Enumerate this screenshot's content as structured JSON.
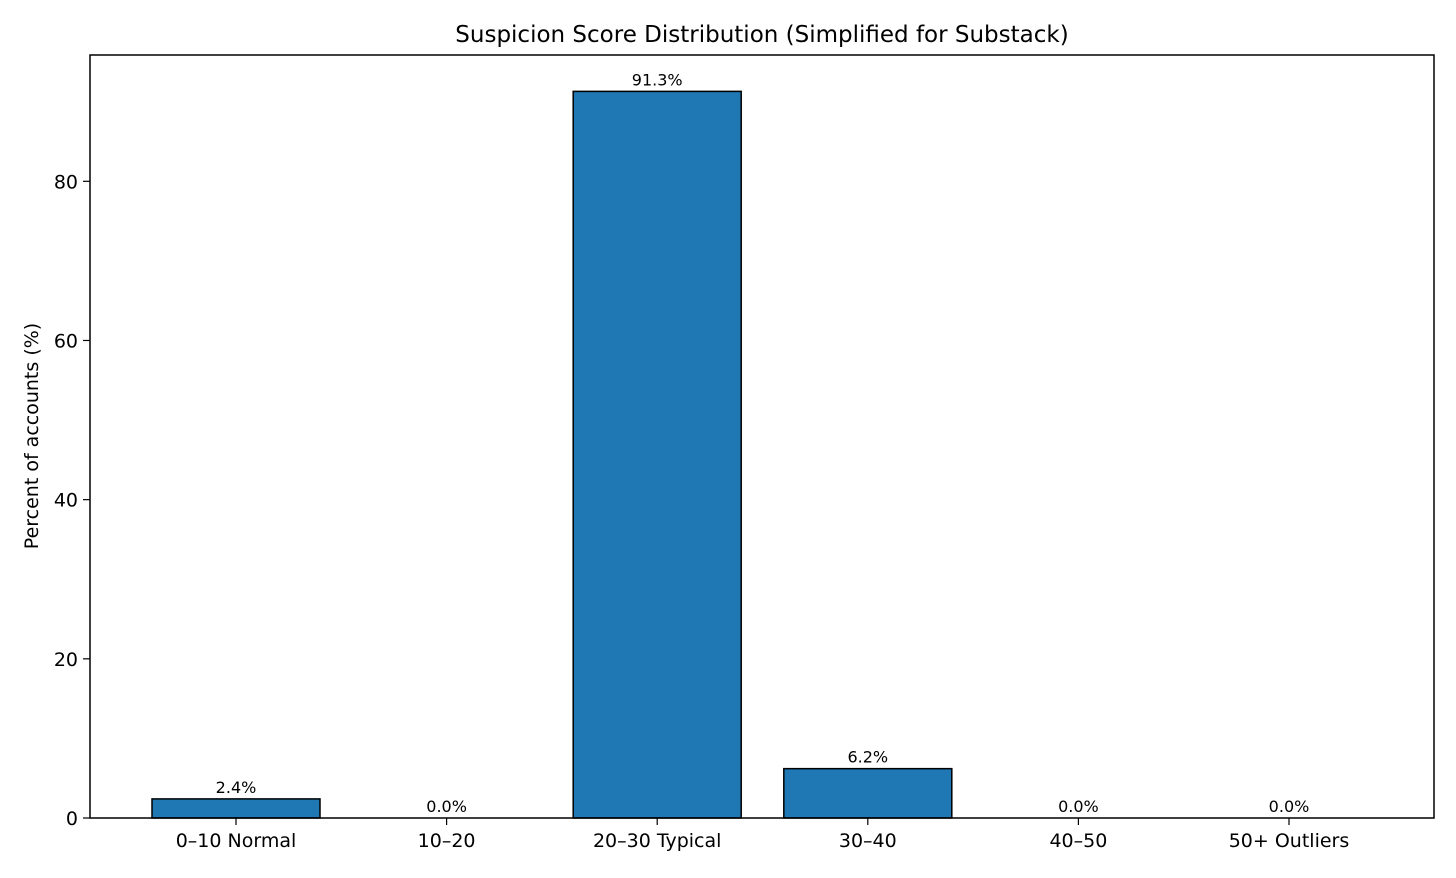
{
  "chart_data": {
    "type": "bar",
    "title": "Suspicion Score Distribution (Simplified for Substack)",
    "xlabel": "",
    "ylabel": "Percent of accounts (%)",
    "categories": [
      "0–10 Normal",
      "10–20",
      "20–30 Typical",
      "30–40",
      "40–50",
      "50+ Outliers"
    ],
    "values": [
      2.4,
      0.0,
      91.3,
      6.2,
      0.0,
      0.0
    ],
    "value_labels": [
      "2.4%",
      "0.0%",
      "91.3%",
      "6.2%",
      "0.0%",
      "0.0%"
    ],
    "ylim": [
      0,
      95.87
    ],
    "yticks": [
      0,
      20,
      40,
      60,
      80
    ],
    "grid": false,
    "legend": "none",
    "colors": {
      "bar_fill": "#1f77b4",
      "bar_edge": "#000000",
      "axis": "#000000"
    }
  }
}
